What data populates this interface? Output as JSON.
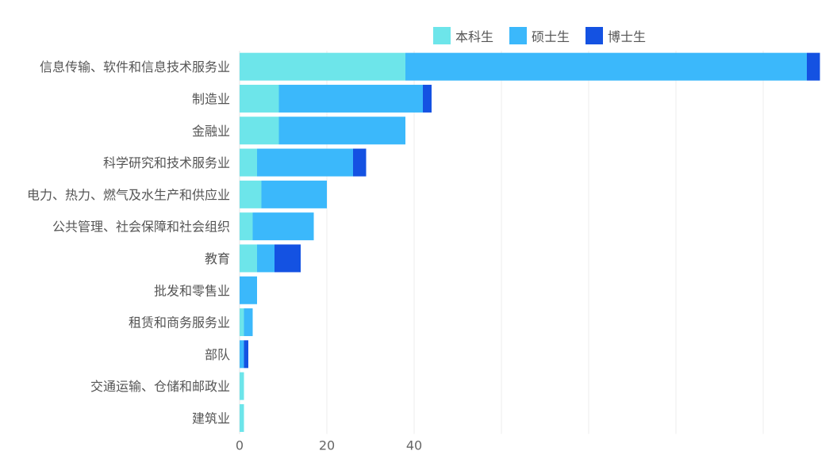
{
  "chart_data": {
    "type": "bar",
    "orientation": "horizontal",
    "stacked": true,
    "categories": [
      "信息传输、软件和信息技术服务业",
      "制造业",
      "金融业",
      "科学研究和技术服务业",
      "电力、热力、燃气及水生产和供应业",
      "公共管理、社会保障和社会组织",
      "教育",
      "批发和零售业",
      "租赁和商务服务业",
      "部队",
      "交通运输、仓储和邮政业",
      "建筑业"
    ],
    "series": [
      {
        "name": "本科生",
        "color": "#6de5ea",
        "values": [
          38,
          9,
          9,
          4,
          5,
          3,
          4,
          0,
          1,
          0,
          1,
          1
        ]
      },
      {
        "name": "硕士生",
        "color": "#3bb8fb",
        "values": [
          92,
          33,
          29,
          22,
          15,
          14,
          4,
          4,
          2,
          1,
          0,
          0
        ]
      },
      {
        "name": "博士生",
        "color": "#1452e2",
        "values": [
          3,
          2,
          0,
          3,
          0,
          0,
          6,
          0,
          0,
          1,
          0,
          0
        ]
      }
    ],
    "x_ticks": [
      "0",
      "20",
      "40"
    ],
    "xlim": [
      0,
      134
    ],
    "grid": true,
    "legend_position": "top-right"
  }
}
